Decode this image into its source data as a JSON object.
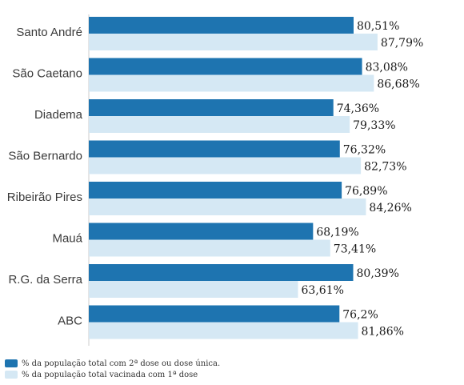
{
  "chart_data": {
    "type": "bar",
    "orientation": "horizontal",
    "categories": [
      "Santo André",
      "São Caetano",
      "Diadema",
      "São Bernardo",
      "Ribeirão Pires",
      "Mauá",
      "R.G. da Serra",
      "ABC"
    ],
    "series": [
      {
        "name": "% da população total com 2ª dose ou dose única.",
        "color": "#1e74b0",
        "values": [
          80.51,
          83.08,
          74.36,
          76.32,
          76.89,
          68.19,
          80.39,
          76.2
        ],
        "labels": [
          "80,51%",
          "83,08%",
          "74,36%",
          "76,32%",
          "76,89%",
          "68,19%",
          "80,39%",
          "76,2%"
        ]
      },
      {
        "name": "% da população total vacinada com 1ª dose",
        "color": "#d5e8f4",
        "values": [
          87.79,
          86.68,
          79.33,
          82.73,
          84.26,
          73.41,
          63.61,
          81.86
        ],
        "labels": [
          "87,79%",
          "86,68%",
          "79,33%",
          "82,73%",
          "84,26%",
          "73,41%",
          "63,61%",
          "81,86%"
        ]
      }
    ],
    "title": "",
    "xlabel": "",
    "ylabel": "",
    "xlim": [
      0,
      100
    ],
    "grid": false,
    "legend_position": "bottom-left"
  }
}
